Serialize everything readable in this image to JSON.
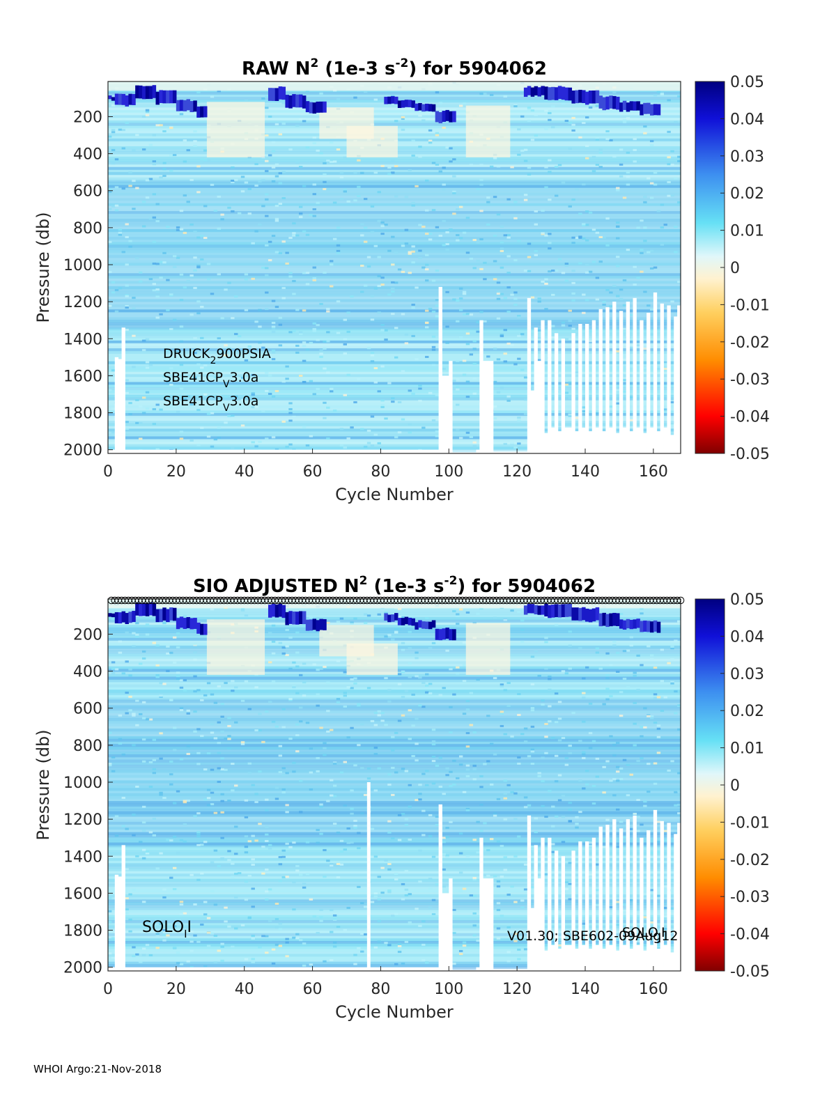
{
  "footer": "WHOI Argo:21-Nov-2018",
  "chart_data": [
    {
      "type": "heatmap",
      "title": {
        "prefix": "RAW N",
        "sup1": "2",
        "mid": " (1e-3 s",
        "sup2": "-2",
        "suffix": ") for 5904062"
      },
      "xlabel": "Cycle Number",
      "ylabel": "Pressure (db)",
      "xlim": [
        0,
        168
      ],
      "ylim": [
        2020,
        10
      ],
      "xticks": [
        "0",
        "20",
        "40",
        "60",
        "80",
        "100",
        "120",
        "140",
        "160"
      ],
      "yticks": [
        "200",
        "400",
        "600",
        "800",
        "1000",
        "1200",
        "1400",
        "1600",
        "1800",
        "2000"
      ],
      "colorbar": {
        "min": -0.05,
        "max": 0.05,
        "ticks": [
          "0.05",
          "0.04",
          "0.03",
          "0.02",
          "0.01",
          "0",
          "-0.01",
          "-0.02",
          "-0.03",
          "-0.04",
          "-0.05"
        ]
      },
      "annotations": [
        {
          "base": "DRUCK",
          "sub": "2",
          "rest": "900PSIA"
        },
        {
          "base": "SBE41CP",
          "sub": "V",
          "rest": "3.0a"
        },
        {
          "base": "SBE41CP",
          "sub": "V",
          "rest": "3.0a"
        }
      ]
    },
    {
      "type": "heatmap",
      "title": {
        "prefix": "SIO  ADJUSTED N",
        "sup1": "2",
        "mid": " (1e-3 s",
        "sup2": "-2",
        "suffix": ") for 5904062"
      },
      "xlabel": "Cycle Number",
      "ylabel": "Pressure (db)",
      "xlim": [
        0,
        168
      ],
      "ylim": [
        2020,
        10
      ],
      "xticks": [
        "0",
        "20",
        "40",
        "60",
        "80",
        "100",
        "120",
        "140",
        "160"
      ],
      "yticks": [
        "200",
        "400",
        "600",
        "800",
        "1000",
        "1200",
        "1400",
        "1600",
        "1800",
        "2000"
      ],
      "colorbar": {
        "min": -0.05,
        "max": 0.05,
        "ticks": [
          "0.05",
          "0.04",
          "0.03",
          "0.02",
          "0.01",
          "0",
          "-0.01",
          "-0.02",
          "-0.03",
          "-0.04",
          "-0.05"
        ]
      },
      "annotations": [
        {
          "base": "SOLO",
          "sub": "I",
          "rest": "I"
        },
        {
          "base": "SOLO",
          "sub": "I",
          "rest": "I"
        },
        {
          "base": "V01.30; SBE602-09Aug12",
          "sub": "",
          "rest": ""
        }
      ],
      "qc_markers": "cycles 1-168 marked along top edge"
    }
  ],
  "profile_bottoms_db": [
    {
      "from": 0,
      "to": 2,
      "bottom": 2000
    },
    {
      "from": 2,
      "to": 3,
      "bottom": 1500
    },
    {
      "from": 3,
      "to": 4,
      "bottom": 1510
    },
    {
      "from": 4,
      "to": 5,
      "bottom": 1340
    },
    {
      "from": 5,
      "to": 97,
      "bottom": 2000
    },
    {
      "from": 97,
      "to": 98,
      "bottom": 1120
    },
    {
      "from": 98,
      "to": 100,
      "bottom": 1600
    },
    {
      "from": 100,
      "to": 101,
      "bottom": 1520
    },
    {
      "from": 101,
      "to": 108,
      "bottom": 2020
    },
    {
      "from": 108,
      "to": 109,
      "bottom": 2000
    },
    {
      "from": 109,
      "to": 110,
      "bottom": 1300
    },
    {
      "from": 110,
      "to": 113,
      "bottom": 1520
    },
    {
      "from": 113,
      "to": 123,
      "bottom": 2010
    },
    {
      "from": 123,
      "to": 124,
      "bottom": 1180
    },
    {
      "from": 124,
      "to": 125,
      "bottom": 1680
    },
    {
      "from": 125,
      "to": 126,
      "bottom": 1340
    },
    {
      "from": 126,
      "to": 127,
      "bottom": 1520
    },
    {
      "from": 127,
      "to": 128,
      "bottom": 1300
    },
    {
      "from": 128,
      "to": 129,
      "bottom": 1910
    },
    {
      "from": 129,
      "to": 130,
      "bottom": 1300
    },
    {
      "from": 130,
      "to": 131,
      "bottom": 1880
    },
    {
      "from": 131,
      "to": 132,
      "bottom": 1370
    },
    {
      "from": 132,
      "to": 133,
      "bottom": 1900
    },
    {
      "from": 133,
      "to": 134,
      "bottom": 1400
    },
    {
      "from": 134,
      "to": 136,
      "bottom": 1880
    },
    {
      "from": 136,
      "to": 137,
      "bottom": 1370
    },
    {
      "from": 137,
      "to": 138,
      "bottom": 1900
    },
    {
      "from": 138,
      "to": 139,
      "bottom": 1320
    },
    {
      "from": 139,
      "to": 140,
      "bottom": 1880
    },
    {
      "from": 140,
      "to": 141,
      "bottom": 1320
    },
    {
      "from": 141,
      "to": 142,
      "bottom": 1900
    },
    {
      "from": 142,
      "to": 143,
      "bottom": 1300
    },
    {
      "from": 143,
      "to": 144,
      "bottom": 1880
    },
    {
      "from": 144,
      "to": 145,
      "bottom": 1240
    },
    {
      "from": 145,
      "to": 146,
      "bottom": 1900
    },
    {
      "from": 146,
      "to": 147,
      "bottom": 1230
    },
    {
      "from": 147,
      "to": 148,
      "bottom": 1880
    },
    {
      "from": 148,
      "to": 149,
      "bottom": 1200
    },
    {
      "from": 149,
      "to": 150,
      "bottom": 1910
    },
    {
      "from": 150,
      "to": 151,
      "bottom": 1250
    },
    {
      "from": 151,
      "to": 152,
      "bottom": 1880
    },
    {
      "from": 152,
      "to": 153,
      "bottom": 1200
    },
    {
      "from": 153,
      "to": 154,
      "bottom": 1900
    },
    {
      "from": 154,
      "to": 155,
      "bottom": 1180
    },
    {
      "from": 155,
      "to": 156,
      "bottom": 1880
    },
    {
      "from": 156,
      "to": 157,
      "bottom": 1300
    },
    {
      "from": 157,
      "to": 158,
      "bottom": 1910
    },
    {
      "from": 158,
      "to": 159,
      "bottom": 1260
    },
    {
      "from": 159,
      "to": 160,
      "bottom": 1880
    },
    {
      "from": 160,
      "to": 161,
      "bottom": 1150
    },
    {
      "from": 161,
      "to": 162,
      "bottom": 1900
    },
    {
      "from": 162,
      "to": 163,
      "bottom": 1210
    },
    {
      "from": 163,
      "to": 164,
      "bottom": 1880
    },
    {
      "from": 164,
      "to": 165,
      "bottom": 1220
    },
    {
      "from": 165,
      "to": 166,
      "bottom": 1920
    },
    {
      "from": 166,
      "to": 167,
      "bottom": 1280
    },
    {
      "from": 167,
      "to": 168,
      "bottom": 1220
    }
  ],
  "adjusted_extra_gaps": [
    {
      "from": 76,
      "to": 77,
      "top_db": 1000
    }
  ],
  "stratified_layer_db": [
    {
      "from": 0,
      "to": 2,
      "top": 90,
      "bottom": 110
    },
    {
      "from": 2,
      "to": 8,
      "top": 80,
      "bottom": 140
    },
    {
      "from": 8,
      "to": 14,
      "top": 30,
      "bottom": 100
    },
    {
      "from": 14,
      "to": 20,
      "top": 60,
      "bottom": 130
    },
    {
      "from": 20,
      "to": 26,
      "top": 110,
      "bottom": 170
    },
    {
      "from": 26,
      "to": 29,
      "top": 140,
      "bottom": 200
    },
    {
      "from": 47,
      "to": 52,
      "top": 40,
      "bottom": 110
    },
    {
      "from": 52,
      "to": 58,
      "top": 80,
      "bottom": 150
    },
    {
      "from": 58,
      "to": 64,
      "top": 120,
      "bottom": 180
    },
    {
      "from": 81,
      "to": 85,
      "top": 90,
      "bottom": 130
    },
    {
      "from": 85,
      "to": 90,
      "top": 110,
      "bottom": 150
    },
    {
      "from": 90,
      "to": 96,
      "top": 130,
      "bottom": 170
    },
    {
      "from": 96,
      "to": 102,
      "top": 170,
      "bottom": 230
    },
    {
      "from": 122,
      "to": 128,
      "top": 40,
      "bottom": 90
    },
    {
      "from": 128,
      "to": 136,
      "top": 40,
      "bottom": 110
    },
    {
      "from": 136,
      "to": 144,
      "top": 60,
      "bottom": 130
    },
    {
      "from": 144,
      "to": 150,
      "top": 90,
      "bottom": 160
    },
    {
      "from": 150,
      "to": 156,
      "top": 120,
      "bottom": 170
    },
    {
      "from": 156,
      "to": 162,
      "top": 130,
      "bottom": 190
    }
  ]
}
